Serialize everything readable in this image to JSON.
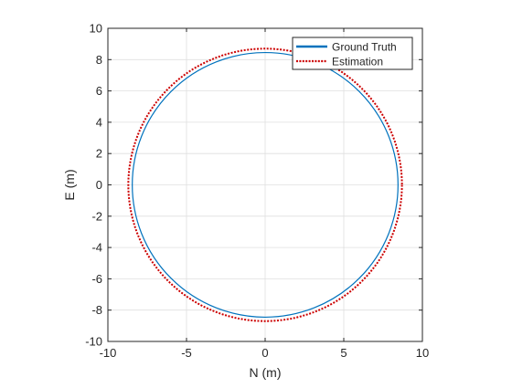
{
  "chart_data": {
    "type": "line",
    "title": "",
    "xlabel": "N (m)",
    "ylabel": "E (m)",
    "xlim": [
      -10,
      10
    ],
    "ylim": [
      -10,
      10
    ],
    "xticks": [
      -10,
      -5,
      0,
      5,
      10
    ],
    "yticks": [
      -10,
      -8,
      -6,
      -4,
      -2,
      0,
      2,
      4,
      6,
      8,
      10
    ],
    "grid": true,
    "legend_position": "top-right",
    "series": [
      {
        "name": "Ground Truth",
        "color": "#0072BD",
        "style": "solid",
        "shape": "circle",
        "center": [
          0,
          0
        ],
        "radius": 8.45,
        "samples": [
          [
            8.45,
            0
          ],
          [
            5.97,
            5.97
          ],
          [
            0,
            8.45
          ],
          [
            -5.97,
            5.97
          ],
          [
            -8.45,
            0
          ],
          [
            -5.97,
            -5.97
          ],
          [
            0,
            -8.45
          ],
          [
            5.97,
            -5.97
          ]
        ]
      },
      {
        "name": "Estimation",
        "color": "#CC0000",
        "style": "dotted",
        "shape": "circle",
        "center": [
          0,
          0
        ],
        "radius": 8.7,
        "samples": [
          [
            8.7,
            0
          ],
          [
            6.15,
            6.15
          ],
          [
            0,
            8.7
          ],
          [
            -6.15,
            6.15
          ],
          [
            -8.7,
            0
          ],
          [
            -6.15,
            -6.15
          ],
          [
            0,
            -8.7
          ],
          [
            6.15,
            -6.15
          ]
        ]
      }
    ]
  }
}
